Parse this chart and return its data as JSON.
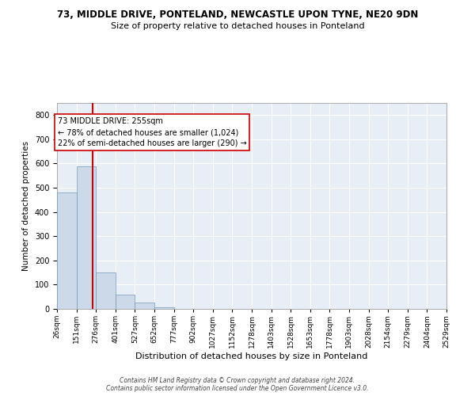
{
  "title1": "73, MIDDLE DRIVE, PONTELAND, NEWCASTLE UPON TYNE, NE20 9DN",
  "title2": "Size of property relative to detached houses in Ponteland",
  "xlabel": "Distribution of detached houses by size in Ponteland",
  "ylabel": "Number of detached properties",
  "bar_values": [
    480,
    590,
    150,
    60,
    25,
    8,
    0,
    0,
    0,
    0,
    0,
    0,
    0,
    0,
    0,
    0,
    0,
    0,
    0,
    0
  ],
  "bin_edges": [
    26,
    151,
    276,
    401,
    527,
    652,
    777,
    902,
    1027,
    1152,
    1278,
    1403,
    1528,
    1653,
    1778,
    1903,
    2028,
    2154,
    2279,
    2404,
    2529
  ],
  "tick_labels": [
    "26sqm",
    "151sqm",
    "276sqm",
    "401sqm",
    "527sqm",
    "652sqm",
    "777sqm",
    "902sqm",
    "1027sqm",
    "1152sqm",
    "1278sqm",
    "1403sqm",
    "1528sqm",
    "1653sqm",
    "1778sqm",
    "1903sqm",
    "2028sqm",
    "2154sqm",
    "2279sqm",
    "2404sqm",
    "2529sqm"
  ],
  "property_size": 255,
  "property_label": "73 MIDDLE DRIVE: 255sqm",
  "annotation1": "← 78% of detached houses are smaller (1,024)",
  "annotation2": "22% of semi-detached houses are larger (290) →",
  "vline_color": "#cc0000",
  "bar_color": "#ccd9e8",
  "bar_edge_color": "#7799bb",
  "bg_color": "#e8eef5",
  "grid_color": "#ffffff",
  "ylim": [
    0,
    850
  ],
  "yticks": [
    0,
    100,
    200,
    300,
    400,
    500,
    600,
    700,
    800
  ],
  "footer1": "Contains HM Land Registry data © Crown copyright and database right 2024.",
  "footer2": "Contains public sector information licensed under the Open Government Licence v3.0."
}
